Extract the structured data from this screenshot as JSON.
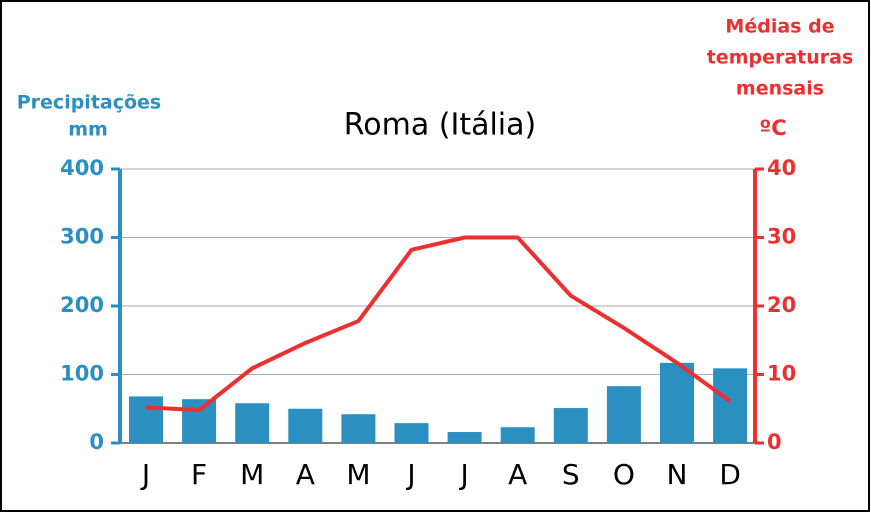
{
  "chart_data": {
    "type": "bar-line",
    "title": "Roma (Itália)",
    "ylabel": [
      "Precipitações",
      "mm"
    ],
    "y2label": [
      "Médias de",
      "temperaturas",
      "mensais"
    ],
    "y2unit": "ºC",
    "categories": [
      "J",
      "F",
      "M",
      "A",
      "M",
      "J",
      "J",
      "A",
      "S",
      "O",
      "N",
      "D"
    ],
    "series": [
      {
        "name": "Precipitações",
        "type": "bar",
        "color": "#2a8fc1",
        "values": [
          68,
          64,
          58,
          50,
          42,
          29,
          16,
          23,
          51,
          83,
          117,
          109
        ]
      },
      {
        "name": "Médias de temperaturas mensais",
        "type": "line",
        "axis": "y2",
        "color": "#ee2f2f",
        "values": [
          5.2,
          4.8,
          10.9,
          14.6,
          17.8,
          28.2,
          30,
          30,
          21.5,
          16.8,
          11.7,
          6.1
        ]
      }
    ],
    "ylim": [
      0,
      400
    ],
    "yticks": [
      0,
      100,
      200,
      300,
      400
    ],
    "y2lim": [
      0,
      40
    ],
    "y2ticks": [
      0,
      10,
      20,
      30,
      40
    ],
    "grid": true
  }
}
